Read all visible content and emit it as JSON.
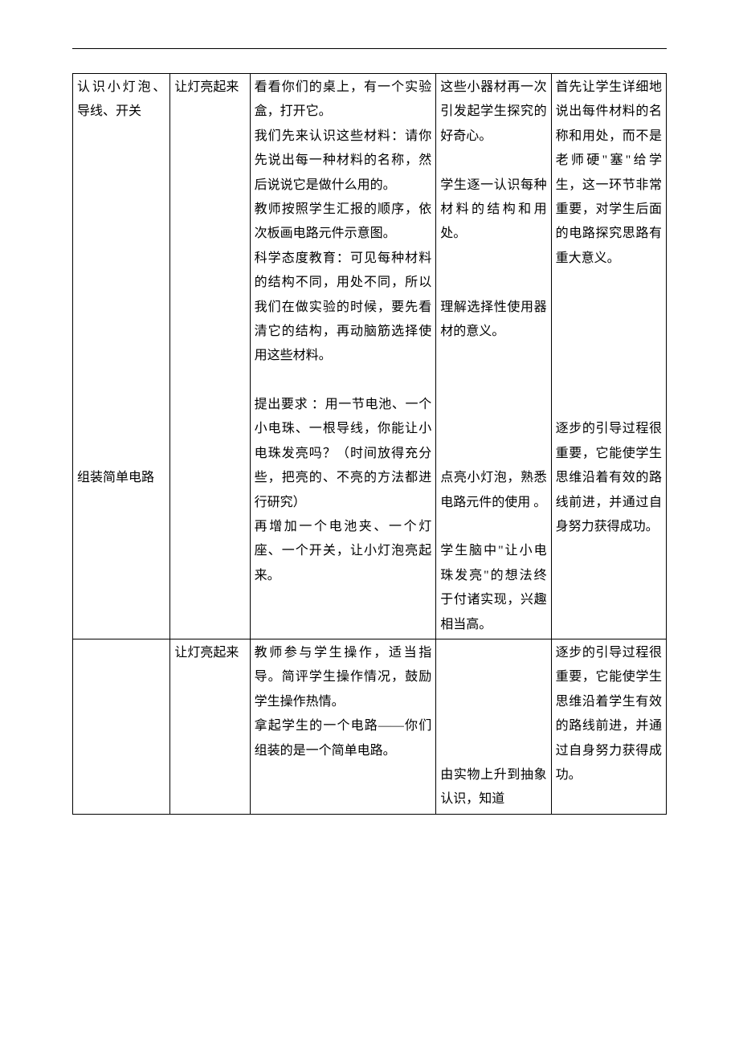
{
  "table": {
    "rows": [
      {
        "c1": [
          "认识小灯泡、导线、开关",
          "",
          "",
          "",
          "",
          "",
          "",
          "",
          "",
          "",
          "",
          "",
          "",
          "",
          "",
          "",
          "",
          "",
          "",
          "",
          "组装简单电路"
        ],
        "c2": "让灯亮起来",
        "c3": [
          "看看你们的桌上，有一个实验盒，打开它。",
          "我们先来认识这些材料：请你先说出每一种材料的名称，然后说说它是做什么用的。",
          "教师按照学生汇报的顺序，依次板画电路元件示意图。",
          "科学态度教育：可见每种材料的结构不同，用处不同，所以我们在做实验的时候，要先看清它的结构，再动脑筋选择使用这些材料。",
          "",
          "提出要求 ：用一节电池、一个小电珠、一根导线，你能让小电珠发亮吗？（时间放得充分些，把亮的、不亮的方法都进行研究）",
          "再增加一个电池夹、一个灯座、一个开关，让小灯泡亮起来。"
        ],
        "c4": [
          "这些小器材再一次引发起学生探究的好奇心。",
          "",
          "学生逐一认识每种材料的结构和用处。",
          "",
          "",
          "理解选择性使用器材的意义。",
          "",
          "",
          "",
          "",
          "",
          "",
          "点亮小灯泡，熟悉电路元件的使用 。",
          "",
          "学生脑中\"让小电珠发亮\"的想法终于付诸实现，兴趣相当高。"
        ],
        "c5": [
          "首先让学生详细地说出每件材料的名称和用处，而不是老师硬\"塞\"给学生，这一环节非常重要，对学生后面的电路探究思路有重大意义。",
          "",
          "",
          "",
          "",
          "",
          "",
          "",
          "",
          "",
          "逐步的引导过程很重要，它能使学生思维沿着有效的路线前进，并通过自身努力获得成功。"
        ]
      },
      {
        "c1": "",
        "c2": "让灯亮起来",
        "c3": [
          "教师参与学生操作，适当指导。简评学生操作情况，鼓励学生操作热情。",
          "拿起学生的一个电路——你们组装的是一个简单电路。"
        ],
        "c4": [
          "",
          "",
          "",
          "",
          "",
          "由实物上升到抽象认识，知道"
        ],
        "c5": [
          "逐步的引导过程很重要，它能使学生思维沿着学生有效的路线前进，并通过自身努力获得成功。"
        ]
      }
    ]
  }
}
